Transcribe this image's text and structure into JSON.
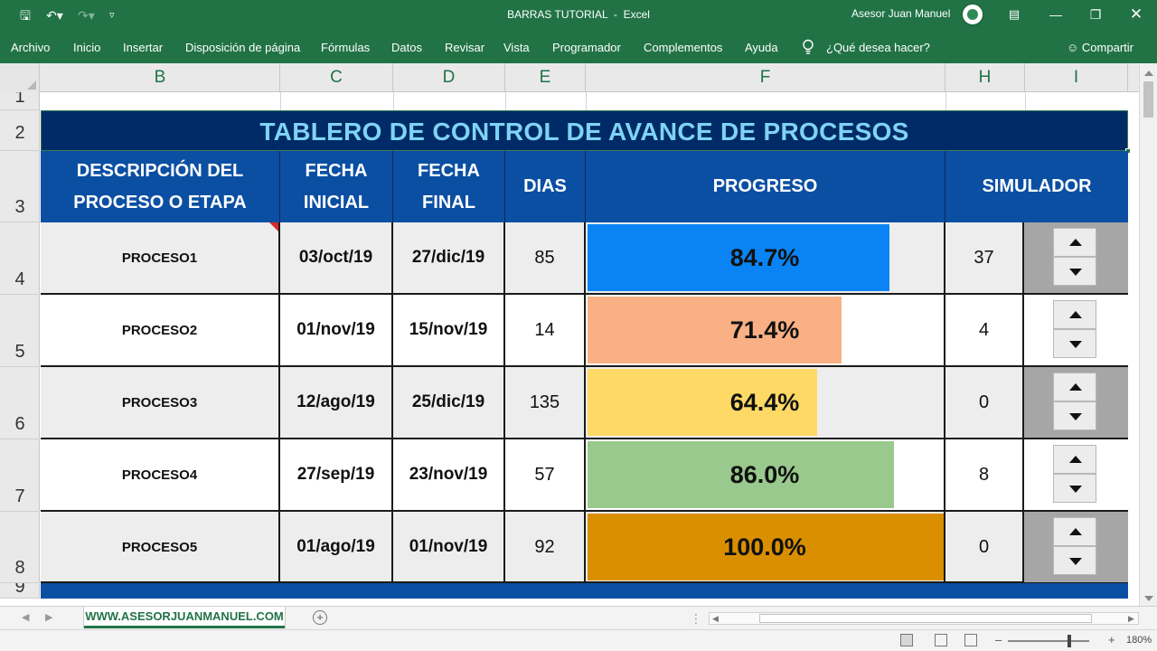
{
  "window": {
    "title": "BARRAS TUTORIAL",
    "app": "Excel",
    "user": "Asesor Juan Manuel"
  },
  "ribbon": {
    "tabs": [
      "Archivo",
      "Inicio",
      "Insertar",
      "Disposición de página",
      "Fórmulas",
      "Datos",
      "Revisar",
      "Vista",
      "Programador",
      "Complementos",
      "Ayuda"
    ],
    "tell_me": "¿Qué desea hacer?",
    "share": "Compartir"
  },
  "columns": [
    "B",
    "C",
    "D",
    "E",
    "F",
    "H",
    "I"
  ],
  "rows": [
    "1",
    "2",
    "3",
    "4",
    "5",
    "6",
    "7",
    "8",
    "9"
  ],
  "sheet": {
    "title": "TABLERO DE CONTROL DE AVANCE DE PROCESOS",
    "headers": {
      "descripcion_1": "DESCRIPCIÓN DEL",
      "descripcion_2": "PROCESO O ETAPA",
      "fecha_inicial_1": "FECHA",
      "fecha_inicial_2": "INICIAL",
      "fecha_final_1": "FECHA",
      "fecha_final_2": "FINAL",
      "dias": "DIAS",
      "progreso": "PROGRESO",
      "simulador": "SIMULADOR"
    },
    "rows": [
      {
        "name": "PROCESO1",
        "start": "03/oct/19",
        "end": "27/dic/19",
        "days": "85",
        "progress_label": "84.7%",
        "progress": 0.847,
        "bar_color": "#0a84f4",
        "simulator": "37",
        "shade": "#ededed",
        "spin_bg": "#a6a6a6"
      },
      {
        "name": "PROCESO2",
        "start": "01/nov/19",
        "end": "15/nov/19",
        "days": "14",
        "progress_label": "71.4%",
        "progress": 0.714,
        "bar_color": "#f8b084",
        "simulator": "4",
        "shade": "#ffffff",
        "spin_bg": "#ffffff"
      },
      {
        "name": "PROCESO3",
        "start": "12/ago/19",
        "end": "25/dic/19",
        "days": "135",
        "progress_label": "64.4%",
        "progress": 0.644,
        "bar_color": "#ffd966",
        "simulator": "0",
        "shade": "#ededed",
        "spin_bg": "#a6a6a6"
      },
      {
        "name": "PROCESO4",
        "start": "27/sep/19",
        "end": "23/nov/19",
        "days": "57",
        "progress_label": "86.0%",
        "progress": 0.86,
        "bar_color": "#99c98c",
        "simulator": "8",
        "shade": "#ffffff",
        "spin_bg": "#ffffff"
      },
      {
        "name": "PROCESO5",
        "start": "01/ago/19",
        "end": "01/nov/19",
        "days": "92",
        "progress_label": "100.0%",
        "progress": 1.0,
        "bar_color": "#d98f00",
        "simulator": "0",
        "shade": "#ededed",
        "spin_bg": "#a6a6a6"
      }
    ]
  },
  "sheet_tab": "WWW.ASESORJUANMANUEL.COM",
  "zoom": "180%",
  "colors": {
    "excel_green": "#217346",
    "title_bg": "#002b66",
    "title_text": "#7fd3f5",
    "header_bg": "#0b4fa3"
  }
}
